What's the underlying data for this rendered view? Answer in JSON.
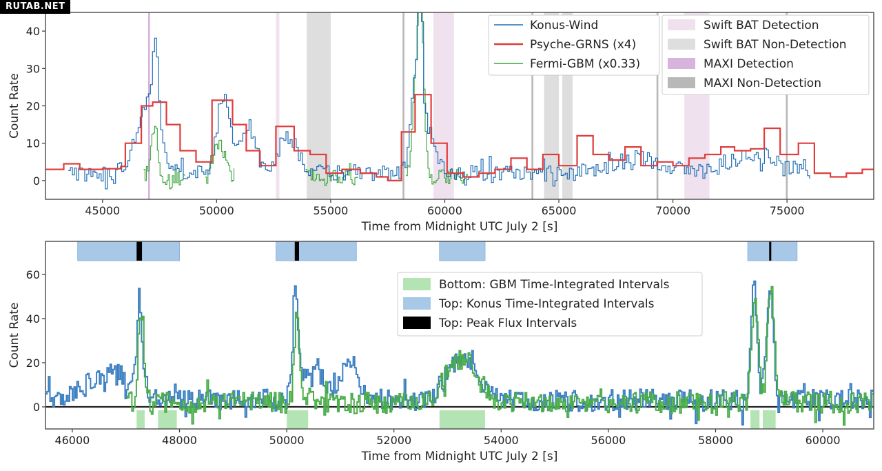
{
  "watermark": "RUTAB.NET",
  "colors": {
    "konus": "#1f6eb4",
    "psyche": "#e03c3c",
    "gbm": "#3aa33a",
    "swift_det": "#efe2ee",
    "swift_nondet": "#dedede",
    "maxi_det": "#d8b4dc",
    "maxi_nondet": "#b8b8b8",
    "gbm_interval": "#b4e4b4",
    "konus_interval": "#a8c8e8",
    "peak": "#000000"
  },
  "chart_data": [
    {
      "type": "line",
      "xlabel": "Time from Midnight UTC July 2 [s]",
      "ylabel": "Count Rate",
      "xlim": [
        42500,
        78800
      ],
      "ylim": [
        -5,
        45
      ],
      "xticks": [
        45000,
        50000,
        55000,
        60000,
        65000,
        70000,
        75000
      ],
      "yticks": [
        0,
        10,
        20,
        30,
        40
      ],
      "legend_location": "top-right",
      "legend_series": [
        "Konus-Wind",
        "Psyche-GRNS (x4)",
        "Fermi-GBM (x0.33)"
      ],
      "legend_regions": [
        "Swift BAT Detection",
        "Swift BAT Non-Detection",
        "MAXI Detection",
        "MAXI Non-Detection"
      ],
      "regions": [
        {
          "kind": "swift_det",
          "x0": 59500,
          "x1": 60400
        },
        {
          "kind": "swift_det",
          "x0": 70500,
          "x1": 71600
        },
        {
          "kind": "swift_det",
          "x0": 52600,
          "x1": 52750
        },
        {
          "kind": "swift_nondet",
          "x0": 53950,
          "x1": 55000
        },
        {
          "kind": "swift_nondet",
          "x0": 64350,
          "x1": 65000
        },
        {
          "kind": "swift_nondet",
          "x0": 65150,
          "x1": 65600
        },
        {
          "kind": "maxi_det",
          "x0": 47000,
          "x1": 47080
        },
        {
          "kind": "maxi_nondet",
          "x0": 58150,
          "x1": 58230
        },
        {
          "kind": "maxi_nondet",
          "x0": 63800,
          "x1": 63880
        },
        {
          "kind": "maxi_nondet",
          "x0": 69280,
          "x1": 69360
        },
        {
          "kind": "maxi_nondet",
          "x0": 74950,
          "x1": 75030
        }
      ],
      "psyche_steps": {
        "x": [
          42500,
          43300,
          44000,
          45000,
          45800,
          46000,
          46700,
          47200,
          47800,
          48400,
          49100,
          49800,
          50700,
          51300,
          51900,
          52600,
          53400,
          54100,
          54800,
          55500,
          56300,
          57000,
          57500,
          58100,
          58700,
          59400,
          60100,
          60800,
          61500,
          62200,
          62900,
          63600,
          64300,
          65000,
          65800,
          66500,
          67200,
          67900,
          68600,
          69300,
          70000,
          70700,
          71400,
          72100,
          72700,
          73400,
          74000,
          74700,
          75500,
          76200,
          76900,
          77600,
          78300
        ],
        "y": [
          3,
          4.5,
          3,
          3.2,
          3.8,
          10,
          20,
          21,
          15,
          8,
          5,
          21.5,
          15,
          8,
          4,
          14.5,
          8,
          7,
          2,
          3,
          2,
          1,
          0,
          13,
          23,
          10,
          2,
          1,
          2,
          3,
          6,
          3,
          7,
          4,
          12,
          7,
          5.5,
          9,
          4,
          5,
          4,
          6,
          7,
          9,
          8,
          8.5,
          14,
          7,
          10,
          2,
          1,
          2,
          3
        ]
      },
      "konus_peaks": [
        {
          "x": 46900,
          "h": 18,
          "w": 700
        },
        {
          "x": 47300,
          "h": 22,
          "w": 180
        },
        {
          "x": 50250,
          "h": 20,
          "w": 400
        },
        {
          "x": 51300,
          "h": 12,
          "w": 500
        },
        {
          "x": 53100,
          "h": 10,
          "w": 600
        },
        {
          "x": 58700,
          "h": 22,
          "w": 300
        },
        {
          "x": 58900,
          "h": 33,
          "w": 120
        },
        {
          "x": 59200,
          "h": 12,
          "w": 500
        },
        {
          "x": 68500,
          "h": 4,
          "w": 1500
        },
        {
          "x": 73500,
          "h": 5,
          "w": 1500
        }
      ],
      "konus_base": 2,
      "konus_range": [
        43500,
        76000
      ],
      "gbm_segments": [
        [
          46800,
          48600
        ],
        [
          49500,
          50800
        ],
        [
          53900,
          56200
        ],
        [
          58300,
          61000
        ]
      ],
      "gbm_peaks": [
        {
          "x": 47250,
          "h": 16,
          "w": 200
        },
        {
          "x": 50100,
          "h": 10,
          "w": 300
        },
        {
          "x": 58950,
          "h": 42,
          "w": 180
        },
        {
          "x": 58700,
          "h": 25,
          "w": 200
        }
      ]
    },
    {
      "type": "line",
      "xlabel": "Time from Midnight UTC July 2 [s]",
      "ylabel": "Count Rate",
      "xlim": [
        45500,
        60950
      ],
      "ylim": [
        -10,
        75
      ],
      "xticks": [
        46000,
        48000,
        50000,
        52000,
        54000,
        56000,
        58000,
        60000
      ],
      "yticks": [
        0,
        20,
        40,
        60
      ],
      "legend_location": "center-right",
      "legend_entries": [
        "Bottom: GBM Time-Integrated Intervals",
        "Top: Konus Time-Integrated Intervals",
        "Top: Peak Flux Intervals"
      ],
      "konus_intervals": [
        [
          46100,
          48000
        ],
        [
          49800,
          51300
        ],
        [
          52850,
          53700
        ],
        [
          58600,
          59520
        ]
      ],
      "peak_intervals": [
        [
          47200,
          47300
        ],
        [
          50150,
          50230
        ],
        [
          59000,
          59030
        ]
      ],
      "gbm_intervals": [
        [
          47200,
          47350
        ],
        [
          47600,
          47950
        ],
        [
          50000,
          50400
        ],
        [
          52850,
          53700
        ],
        [
          58650,
          58820
        ],
        [
          58880,
          59120
        ]
      ],
      "konus_peaks": [
        {
          "x": 46700,
          "h": 12,
          "w": 600
        },
        {
          "x": 47250,
          "h": 35,
          "w": 80
        },
        {
          "x": 50150,
          "h": 48,
          "w": 70
        },
        {
          "x": 50500,
          "h": 14,
          "w": 300
        },
        {
          "x": 51150,
          "h": 20,
          "w": 200
        },
        {
          "x": 53250,
          "h": 18,
          "w": 400
        },
        {
          "x": 58700,
          "h": 55,
          "w": 80
        },
        {
          "x": 59000,
          "h": 50,
          "w": 90
        }
      ],
      "konus_base": 3,
      "gbm_peaks": [
        {
          "x": 47280,
          "h": 40,
          "w": 70
        },
        {
          "x": 50180,
          "h": 38,
          "w": 70
        },
        {
          "x": 53250,
          "h": 20,
          "w": 400
        },
        {
          "x": 58720,
          "h": 50,
          "w": 80
        },
        {
          "x": 59020,
          "h": 55,
          "w": 90
        }
      ],
      "gbm_base": 2,
      "gbm_range": [
        47000,
        60950
      ]
    }
  ]
}
